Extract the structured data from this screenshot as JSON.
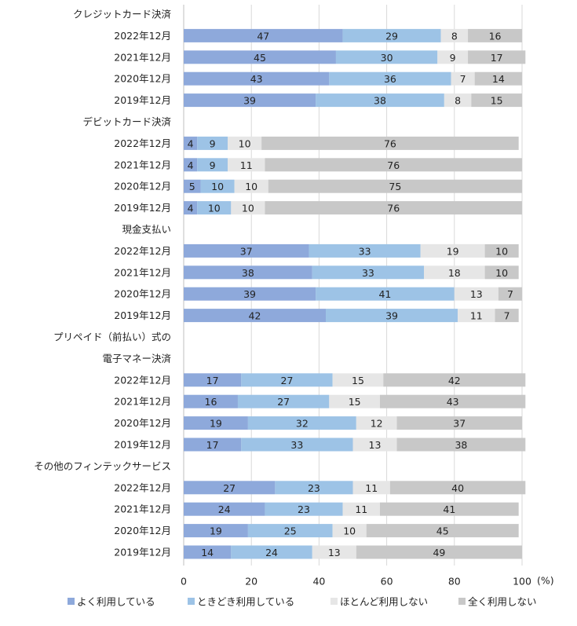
{
  "chart_data": {
    "type": "bar",
    "orientation": "horizontal",
    "stacked": true,
    "xlim": [
      0,
      100
    ],
    "x_ticks": [
      0,
      20,
      40,
      60,
      80,
      100
    ],
    "tick_labels": [
      "0",
      "20",
      "40",
      "60",
      "80",
      "100"
    ],
    "x_unit": "(%)",
    "grid": true,
    "legend_position": "bottom",
    "colors": [
      "#8EA9DB",
      "#9DC3E6",
      "#E6E6E6",
      "#C8C8C8"
    ],
    "series_names": [
      "よく利用している",
      "ときどき利用している",
      "ほとんど利用しない",
      "全く利用しない"
    ],
    "groups": [
      {
        "title_lines": [
          "クレジットカード決済"
        ],
        "rows": [
          {
            "label": "2022年12月",
            "values": [
              47,
              29,
              8,
              16
            ]
          },
          {
            "label": "2021年12月",
            "values": [
              45,
              30,
              9,
              17
            ]
          },
          {
            "label": "2020年12月",
            "values": [
              43,
              36,
              7,
              14
            ]
          },
          {
            "label": "2019年12月",
            "values": [
              39,
              38,
              8,
              15
            ]
          }
        ]
      },
      {
        "title_lines": [
          "デビットカード決済"
        ],
        "rows": [
          {
            "label": "2022年12月",
            "values": [
              4,
              9,
              10,
              76
            ]
          },
          {
            "label": "2021年12月",
            "values": [
              4,
              9,
              11,
              76
            ]
          },
          {
            "label": "2020年12月",
            "values": [
              5,
              10,
              10,
              75
            ]
          },
          {
            "label": "2019年12月",
            "values": [
              4,
              10,
              10,
              76
            ]
          }
        ]
      },
      {
        "title_lines": [
          "現金支払い"
        ],
        "rows": [
          {
            "label": "2022年12月",
            "values": [
              37,
              33,
              19,
              10
            ]
          },
          {
            "label": "2021年12月",
            "values": [
              38,
              33,
              18,
              10
            ]
          },
          {
            "label": "2020年12月",
            "values": [
              39,
              41,
              13,
              7
            ]
          },
          {
            "label": "2019年12月",
            "values": [
              42,
              39,
              11,
              7
            ]
          }
        ]
      },
      {
        "title_lines": [
          "プリペイド（前払い）式の",
          "電子マネー決済"
        ],
        "rows": [
          {
            "label": "2022年12月",
            "values": [
              17,
              27,
              15,
              42
            ]
          },
          {
            "label": "2021年12月",
            "values": [
              16,
              27,
              15,
              43
            ]
          },
          {
            "label": "2020年12月",
            "values": [
              19,
              32,
              12,
              37
            ]
          },
          {
            "label": "2019年12月",
            "values": [
              17,
              33,
              13,
              38
            ]
          }
        ]
      },
      {
        "title_lines": [
          "その他のフィンテックサービス"
        ],
        "rows": [
          {
            "label": "2022年12月",
            "values": [
              27,
              23,
              11,
              40
            ]
          },
          {
            "label": "2021年12月",
            "values": [
              24,
              23,
              11,
              41
            ]
          },
          {
            "label": "2020年12月",
            "values": [
              19,
              25,
              10,
              45
            ]
          },
          {
            "label": "2019年12月",
            "values": [
              14,
              24,
              13,
              49
            ]
          }
        ]
      }
    ]
  }
}
